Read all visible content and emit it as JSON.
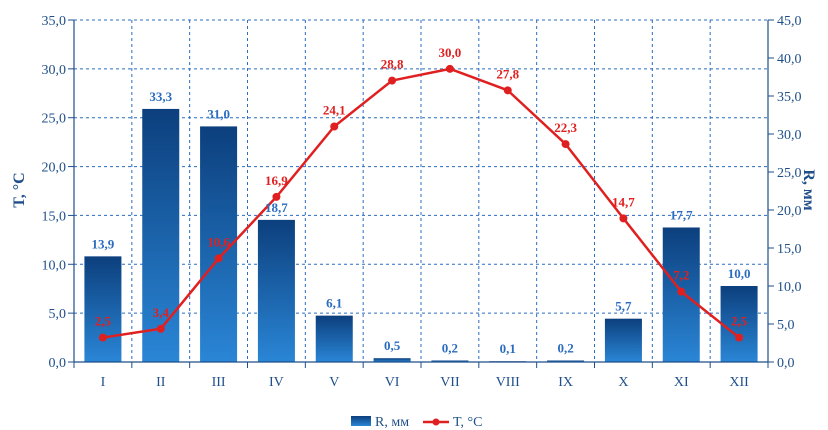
{
  "chart_data": {
    "type": "bar+line",
    "categories": [
      "I",
      "II",
      "III",
      "IV",
      "V",
      "VI",
      "VII",
      "VIII",
      "IX",
      "X",
      "XI",
      "XII"
    ],
    "bar_labels": [
      "13,9",
      "33,3",
      "31,0",
      "18,7",
      "6,1",
      "0,5",
      "0,2",
      "0,1",
      "0,2",
      "5,7",
      "17,7",
      "10,0"
    ],
    "line_labels": [
      "2,5",
      "3,4",
      "10,6",
      "16,9",
      "24,1",
      "28,8",
      "30,0",
      "27,8",
      "22,3",
      "14,7",
      "7,2",
      "2,5"
    ],
    "series": [
      {
        "name": "R, мм",
        "type": "bar",
        "axis": "right",
        "color": "#1d5fae",
        "values": [
          13.9,
          33.3,
          31.0,
          18.7,
          6.1,
          0.5,
          0.2,
          0.1,
          0.2,
          5.7,
          17.7,
          10.0
        ]
      },
      {
        "name": "T, °C",
        "type": "line",
        "axis": "left",
        "color": "#e02020",
        "values": [
          2.5,
          3.4,
          10.6,
          16.9,
          24.1,
          28.8,
          30.0,
          27.8,
          22.3,
          14.7,
          7.2,
          2.5
        ]
      }
    ],
    "y_left": {
      "label": "T, °C",
      "ylim": [
        0,
        35
      ],
      "ticks": [
        "0,0",
        "5,0",
        "10,0",
        "15,0",
        "20,0",
        "25,0",
        "30,0",
        "35,0"
      ]
    },
    "y_right": {
      "label": "R, мм",
      "ylim": [
        0,
        45
      ],
      "ticks": [
        "0,0",
        "5,0",
        "10,0",
        "15,0",
        "20,0",
        "25,0",
        "30,0",
        "35,0",
        "40,0",
        "45,0"
      ]
    },
    "grid": true,
    "legend_position": "bottom-center",
    "colors": {
      "axis": "#1f4f8a",
      "grid": "#2a6cc0"
    }
  }
}
